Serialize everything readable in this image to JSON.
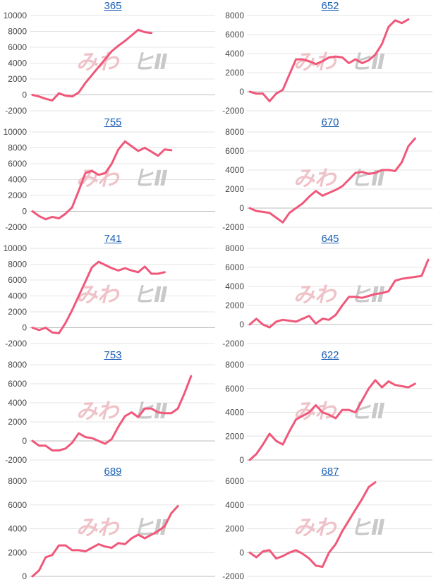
{
  "style": {
    "line_color": "#f0587a",
    "link_color": "#1a5fb4"
  },
  "chart_data": [
    {
      "type": "line",
      "title": "365",
      "ylim": [
        -2000,
        10000
      ],
      "yticks": [
        "10000",
        "8000",
        "6000",
        "4000",
        "2000",
        "0",
        "-2000"
      ],
      "series": [
        {
          "values": [
            0,
            -200,
            -500,
            -700,
            200,
            -100,
            -200,
            300,
            1500,
            2500,
            3500,
            4500,
            5500,
            6200,
            6800,
            7500,
            8200,
            7900,
            7800
          ]
        }
      ]
    },
    {
      "type": "line",
      "title": "652",
      "ylim": [
        -2000,
        8000
      ],
      "yticks": [
        "8000",
        "6000",
        "4000",
        "2000",
        "0",
        "-2000"
      ],
      "series": [
        {
          "values": [
            0,
            -200,
            -200,
            -1000,
            -200,
            200,
            1800,
            3400,
            3400,
            3200,
            2900,
            3200,
            3600,
            3700,
            3600,
            3000,
            3400,
            3000,
            3300,
            3900,
            5000,
            6800,
            7500,
            7200,
            7600
          ]
        }
      ]
    },
    {
      "type": "line",
      "title": "755",
      "ylim": [
        -2000,
        10000
      ],
      "yticks": [
        "10000",
        "8000",
        "6000",
        "4000",
        "2000",
        "0",
        "-2000"
      ],
      "series": [
        {
          "values": [
            0,
            -600,
            -1000,
            -700,
            -900,
            -300,
            500,
            2600,
            4800,
            5100,
            4600,
            4800,
            6000,
            7800,
            8800,
            8200,
            7600,
            8000,
            7500,
            7000,
            7800,
            7700
          ]
        }
      ]
    },
    {
      "type": "line",
      "title": "670",
      "ylim": [
        -2000,
        8000
      ],
      "yticks": [
        "8000",
        "6000",
        "4000",
        "2000",
        "0",
        "-2000"
      ],
      "series": [
        {
          "values": [
            0,
            -300,
            -400,
            -500,
            -1000,
            -1500,
            -500,
            0,
            500,
            1200,
            1800,
            1300,
            1600,
            1900,
            2300,
            3000,
            3700,
            3800,
            3600,
            3700,
            4000,
            4000,
            3900,
            4800,
            6500,
            7300
          ]
        }
      ]
    },
    {
      "type": "line",
      "title": "741",
      "ylim": [
        -2000,
        10000
      ],
      "yticks": [
        "10000",
        "8000",
        "6000",
        "4000",
        "2000",
        "0",
        "-2000"
      ],
      "series": [
        {
          "values": [
            0,
            -300,
            0,
            -600,
            -700,
            600,
            2200,
            4000,
            5800,
            7600,
            8300,
            7900,
            7500,
            7200,
            7500,
            7200,
            7000,
            7700,
            6800,
            6800,
            7000
          ]
        }
      ]
    },
    {
      "type": "line",
      "title": "645",
      "ylim": [
        -2000,
        8000
      ],
      "yticks": [
        "8000",
        "6000",
        "4000",
        "2000",
        "0",
        "-2000"
      ],
      "series": [
        {
          "values": [
            0,
            600,
            0,
            -300,
            300,
            500,
            400,
            300,
            600,
            900,
            100,
            600,
            500,
            1000,
            2000,
            2900,
            2900,
            2800,
            3000,
            3200,
            3300,
            3500,
            4600,
            4800,
            4900,
            5000,
            5100,
            6800
          ]
        }
      ]
    },
    {
      "type": "line",
      "title": "753",
      "ylim": [
        -2000,
        8000
      ],
      "yticks": [
        "8000",
        "6000",
        "4000",
        "2000",
        "0",
        "-2000"
      ],
      "series": [
        {
          "values": [
            0,
            -500,
            -500,
            -1000,
            -1000,
            -800,
            -200,
            800,
            400,
            300,
            0,
            -300,
            200,
            1500,
            2600,
            3000,
            2500,
            3400,
            3400,
            3000,
            2900,
            2900,
            3400,
            5000,
            6800
          ]
        }
      ]
    },
    {
      "type": "line",
      "title": "622",
      "ylim": [
        0,
        8000
      ],
      "yticks": [
        "8000",
        "6000",
        "4000",
        "2000",
        "0"
      ],
      "series": [
        {
          "values": [
            0,
            500,
            1300,
            2200,
            1600,
            1300,
            2400,
            3400,
            3700,
            4000,
            4600,
            4000,
            3800,
            3500,
            4200,
            4200,
            4000,
            5000,
            6000,
            6700,
            6100,
            6600,
            6300,
            6200,
            6100,
            6400
          ]
        }
      ]
    },
    {
      "type": "line",
      "title": "689",
      "ylim": [
        0,
        8000
      ],
      "yticks": [
        "8000",
        "6000",
        "4000",
        "2000",
        "0"
      ],
      "series": [
        {
          "values": [
            0,
            500,
            1600,
            1800,
            2600,
            2600,
            2200,
            2200,
            2100,
            2400,
            2700,
            2500,
            2400,
            2800,
            2700,
            3200,
            3500,
            3200,
            3500,
            3800,
            4200,
            5300,
            5900
          ]
        }
      ]
    },
    {
      "type": "line",
      "title": "687",
      "ylim": [
        -2000,
        6000
      ],
      "yticks": [
        "6000",
        "4000",
        "2000",
        "0",
        "-2000"
      ],
      "series": [
        {
          "values": [
            0,
            -400,
            100,
            200,
            -500,
            -300,
            0,
            200,
            -100,
            -500,
            -1100,
            -1200,
            0,
            700,
            1800,
            2700,
            3600,
            4500,
            5500,
            5900
          ]
        }
      ]
    }
  ]
}
